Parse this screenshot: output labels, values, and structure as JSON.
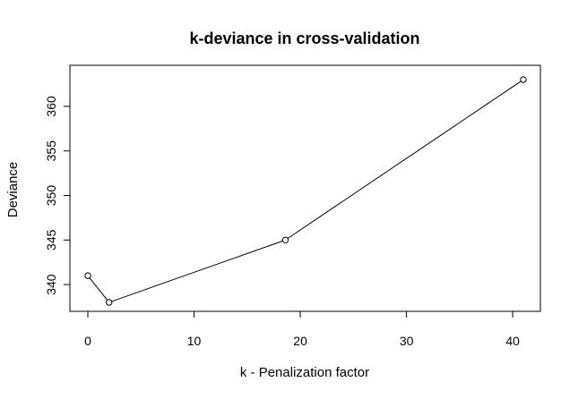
{
  "chart_data": {
    "type": "line",
    "title": "k-deviance in cross-validation",
    "xlabel": "k - Penalization factor",
    "ylabel": "Deviance",
    "x": [
      0,
      2,
      18.6,
      41
    ],
    "series": [
      {
        "values": [
          341,
          338,
          345,
          363
        ]
      }
    ],
    "xlim": [
      0,
      41
    ],
    "ylim": [
      338,
      363
    ],
    "xticks": [
      0,
      10,
      20,
      30,
      40
    ],
    "yticks": [
      340,
      345,
      350,
      355,
      360
    ],
    "marker": "open-circle",
    "grid": false,
    "legend": "none",
    "colors": {
      "line": "#000000",
      "marker_fill": "#ffffff",
      "marker_stroke": "#000000",
      "frame": "#000000",
      "background": "#ffffff"
    }
  }
}
